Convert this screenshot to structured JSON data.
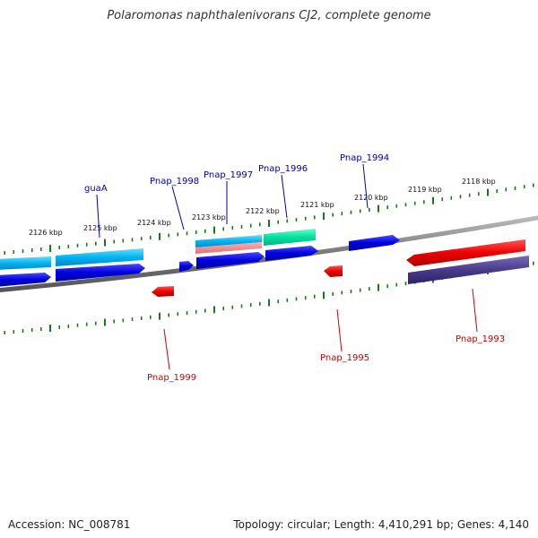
{
  "title": "Polaromonas naphthalenivorans CJ2, complete genome",
  "accession": "Accession: NC_008781",
  "topology": "Topology: circular; Length: 4,410,291 bp; Genes: 4,140",
  "colors": {
    "backbone": "#777777",
    "tick": "#1a7a1a",
    "forward_label": "#0000aa",
    "reverse_label": "#cc0000"
  },
  "scale_labels": [
    "2126 kbp",
    "2125 kbp",
    "2124 kbp",
    "2123 kbp",
    "2122 kbp",
    "2121 kbp",
    "2120 kbp",
    "2119 kbp",
    "2118 kbp"
  ],
  "forward_gene_labels": [
    "guaA",
    "Pnap_1998",
    "Pnap_1997",
    "Pnap_1996",
    "Pnap_1994"
  ],
  "reverse_gene_labels": [
    "Pnap_1999",
    "Pnap_1995",
    "Pnap_1993"
  ]
}
